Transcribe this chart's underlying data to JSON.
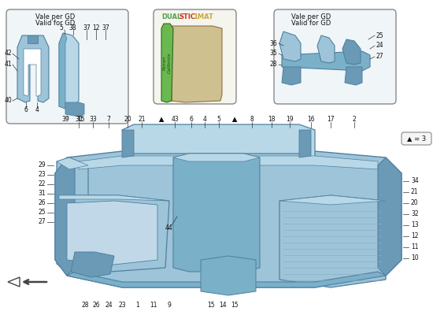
{
  "bg_color": "#ffffff",
  "part_blue": "#9dc4d8",
  "part_blue_dark": "#6a9ab5",
  "part_blue_mid": "#7ab0c8",
  "part_blue_light": "#b8d8e8",
  "part_blue_shadow": "#5080a0",
  "green_mat": "#6ab850",
  "tan_mat": "#cfc090",
  "box_bg": "#f0f5f8",
  "box_border": "#888888",
  "watermark_color": "#b8ccb8",
  "left_box_title": [
    "Vale per GD",
    "Valid for GD"
  ],
  "right_box_title": [
    "Vale per GD",
    "Valid for GD"
  ],
  "legend_dual_color": "#50a050",
  "legend_stic_color": "#d03020",
  "legend_1mat_color": "#c8a840",
  "symbol_label": "▲ = 3"
}
